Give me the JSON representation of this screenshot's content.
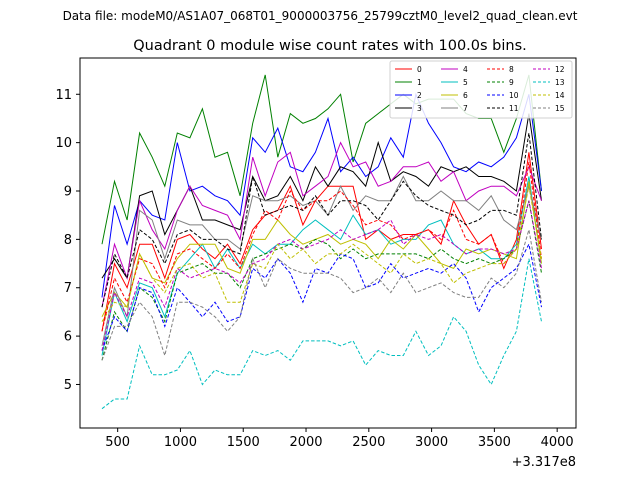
{
  "chart_data": {
    "type": "line",
    "suptitle": "Data file: modeM0/AS1A07_068T01_9000003756_25799cztM0_level2_quad_clean.evt",
    "title": "Quadrant 0 module wise count rates with 100.0s bins.",
    "xlabel": "",
    "ylabel": "",
    "x_offset_label": "+3.317e8",
    "xlim": [
      200,
      4150
    ],
    "ylim": [
      4.1,
      11.75
    ],
    "xticks": [
      500,
      1000,
      1500,
      2000,
      2500,
      3000,
      3500,
      4000
    ],
    "yticks": [
      5,
      6,
      7,
      8,
      9,
      10,
      11
    ],
    "grid": false,
    "legend_position": "top-right",
    "x": [
      375,
      475,
      575,
      675,
      775,
      875,
      975,
      1075,
      1175,
      1275,
      1375,
      1475,
      1575,
      1675,
      1775,
      1875,
      1975,
      2075,
      2175,
      2275,
      2375,
      2475,
      2575,
      2675,
      2775,
      2875,
      2975,
      3075,
      3175,
      3275,
      3375,
      3475,
      3575,
      3675,
      3775,
      3875
    ],
    "series": [
      {
        "name": "0",
        "color": "#ff0000",
        "dash": "solid",
        "values": [
          6.1,
          7.5,
          7.0,
          7.9,
          7.9,
          7.2,
          8.0,
          8.1,
          7.8,
          7.6,
          7.9,
          7.5,
          8.2,
          8.5,
          8.6,
          9.1,
          8.3,
          8.8,
          9.1,
          9.1,
          9.1,
          8.0,
          8.2,
          8.0,
          8.1,
          8.1,
          8.2,
          7.9,
          8.8,
          8.3,
          7.9,
          8.1,
          7.4,
          8.0,
          9.8,
          7.8
        ]
      },
      {
        "name": "1",
        "color": "#008000",
        "dash": "solid",
        "values": [
          7.9,
          9.2,
          8.4,
          10.2,
          9.7,
          9.1,
          10.2,
          10.1,
          10.7,
          9.7,
          9.8,
          8.9,
          10.4,
          11.4,
          9.7,
          10.6,
          10.4,
          10.5,
          10.7,
          11.0,
          9.6,
          10.4,
          10.6,
          10.8,
          11.0,
          10.8,
          10.9,
          10.9,
          10.9,
          10.6,
          10.5,
          10.5,
          9.8,
          10.5,
          11.4,
          9.0
        ]
      },
      {
        "name": "2",
        "color": "#0000ff",
        "dash": "solid",
        "values": [
          6.8,
          8.7,
          7.9,
          8.8,
          8.5,
          8.4,
          10.0,
          9.0,
          9.1,
          8.9,
          8.8,
          8.5,
          10.1,
          9.8,
          10.3,
          9.5,
          9.4,
          9.8,
          10.5,
          9.4,
          9.7,
          9.3,
          9.5,
          10.1,
          9.7,
          11.0,
          10.4,
          10.0,
          9.5,
          9.4,
          9.6,
          9.5,
          9.7,
          10.1,
          11.0,
          9.0
        ]
      },
      {
        "name": "3",
        "color": "#000000",
        "dash": "solid",
        "values": [
          7.2,
          7.6,
          7.2,
          8.9,
          9.0,
          8.1,
          8.6,
          9.1,
          8.4,
          8.4,
          8.3,
          8.2,
          9.3,
          8.8,
          8.9,
          9.3,
          8.8,
          9.5,
          9.1,
          9.5,
          9.4,
          9.1,
          10.0,
          9.2,
          9.4,
          9.3,
          9.1,
          9.5,
          9.4,
          9.5,
          9.3,
          9.3,
          9.2,
          9.0,
          10.6,
          8.8
        ]
      },
      {
        "name": "4",
        "color": "#c000c0",
        "dash": "solid",
        "values": [
          6.6,
          7.9,
          7.2,
          8.8,
          8.2,
          7.8,
          8.6,
          9.1,
          8.7,
          8.6,
          8.5,
          8.0,
          9.7,
          8.9,
          9.6,
          9.8,
          8.9,
          9.1,
          9.3,
          10.0,
          9.5,
          9.6,
          9.1,
          9.2,
          9.5,
          9.5,
          9.6,
          9.2,
          9.4,
          8.8,
          9.0,
          9.1,
          9.1,
          8.9,
          9.5,
          8.8
        ]
      },
      {
        "name": "5",
        "color": "#00bfbf",
        "dash": "solid",
        "values": [
          5.6,
          6.9,
          6.3,
          7.1,
          7.0,
          6.4,
          7.3,
          7.6,
          7.9,
          7.4,
          7.8,
          7.4,
          7.9,
          7.7,
          7.9,
          7.9,
          8.2,
          8.4,
          8.2,
          8.0,
          8.5,
          8.1,
          8.2,
          7.9,
          8.0,
          8.0,
          8.3,
          8.4,
          7.9,
          7.7,
          7.8,
          7.6,
          7.6,
          7.9,
          9.3,
          7.5
        ]
      },
      {
        "name": "6",
        "color": "#bfbf00",
        "dash": "solid",
        "values": [
          6.4,
          6.9,
          6.6,
          7.7,
          7.2,
          7.1,
          7.6,
          7.9,
          7.9,
          7.9,
          7.4,
          7.3,
          8.0,
          8.0,
          8.4,
          8.1,
          7.9,
          8.0,
          8.1,
          7.9,
          8.0,
          7.9,
          7.6,
          8.0,
          7.8,
          8.1,
          7.8,
          7.5,
          7.4,
          7.8,
          7.7,
          7.8,
          7.7,
          7.6,
          9.2,
          7.5
        ]
      },
      {
        "name": "7",
        "color": "#808080",
        "dash": "solid",
        "values": [
          5.8,
          7.0,
          6.4,
          8.6,
          8.4,
          7.6,
          8.4,
          8.3,
          8.3,
          8.0,
          8.0,
          7.8,
          8.9,
          8.8,
          8.8,
          8.9,
          8.7,
          8.8,
          8.5,
          9.1,
          8.6,
          8.9,
          8.8,
          8.8,
          9.3,
          8.8,
          8.8,
          9.0,
          8.8,
          8.8,
          8.6,
          8.9,
          8.4,
          8.2,
          9.1,
          8.0
        ]
      },
      {
        "name": "8",
        "color": "#ff0000",
        "dash": "dashed",
        "values": [
          6.1,
          7.2,
          6.7,
          7.6,
          7.5,
          7.0,
          7.7,
          7.8,
          7.6,
          7.4,
          7.7,
          7.4,
          8.1,
          8.6,
          8.4,
          9.0,
          8.6,
          8.8,
          8.8,
          9.0,
          8.7,
          8.3,
          8.4,
          8.3,
          8.0,
          8.1,
          8.2,
          8.0,
          8.6,
          8.0,
          7.9,
          8.1,
          7.5,
          7.8,
          9.6,
          7.6
        ]
      },
      {
        "name": "9",
        "color": "#008000",
        "dash": "dashed",
        "values": [
          5.5,
          6.5,
          6.1,
          7.0,
          6.8,
          6.3,
          7.3,
          7.4,
          7.5,
          7.3,
          7.3,
          7.0,
          7.6,
          7.7,
          7.8,
          7.9,
          7.8,
          8.0,
          7.9,
          7.6,
          7.8,
          7.6,
          7.7,
          7.7,
          7.7,
          7.7,
          7.6,
          7.8,
          7.6,
          7.5,
          7.6,
          7.5,
          7.6,
          7.8,
          8.8,
          7.3
        ]
      },
      {
        "name": "10",
        "color": "#0000ff",
        "dash": "dashed",
        "values": [
          5.7,
          6.4,
          6.1,
          7.0,
          6.9,
          6.2,
          7.0,
          6.7,
          6.4,
          6.7,
          6.3,
          6.4,
          7.4,
          7.2,
          7.6,
          7.3,
          6.7,
          7.4,
          7.3,
          7.7,
          7.6,
          7.0,
          7.1,
          7.5,
          7.2,
          7.3,
          7.4,
          7.3,
          7.5,
          7.2,
          6.5,
          7.0,
          7.2,
          7.4,
          7.9,
          6.6
        ]
      },
      {
        "name": "11",
        "color": "#000000",
        "dash": "dashed",
        "values": [
          6.6,
          7.7,
          7.2,
          8.2,
          8.0,
          7.5,
          8.1,
          8.2,
          8.0,
          8.0,
          7.8,
          7.7,
          9.3,
          8.5,
          8.6,
          8.7,
          8.6,
          8.9,
          8.5,
          8.8,
          8.8,
          8.7,
          8.4,
          8.8,
          9.2,
          8.9,
          8.7,
          8.6,
          8.5,
          8.3,
          8.4,
          8.6,
          8.6,
          8.5,
          10.2,
          8.0
        ]
      },
      {
        "name": "12",
        "color": "#c000c0",
        "dash": "dashed",
        "values": [
          5.7,
          6.9,
          6.4,
          7.2,
          7.1,
          6.6,
          7.4,
          7.2,
          7.3,
          7.4,
          7.3,
          7.1,
          7.5,
          7.6,
          7.9,
          8.0,
          7.8,
          7.9,
          8.0,
          8.2,
          8.0,
          8.1,
          8.2,
          8.4,
          7.9,
          8.1,
          8.0,
          8.1,
          7.9,
          7.7,
          7.8,
          7.8,
          7.7,
          7.8,
          8.8,
          7.4
        ]
      },
      {
        "name": "13",
        "color": "#00bfbf",
        "dash": "dashed",
        "values": [
          4.5,
          4.7,
          4.7,
          5.8,
          5.2,
          5.2,
          5.3,
          5.7,
          5.0,
          5.3,
          5.2,
          5.2,
          5.7,
          5.6,
          5.7,
          5.5,
          5.9,
          5.9,
          5.9,
          5.8,
          5.9,
          5.4,
          5.7,
          5.6,
          5.6,
          6.1,
          5.6,
          5.8,
          6.4,
          6.1,
          5.4,
          5.0,
          5.6,
          6.1,
          7.6,
          6.3
        ]
      },
      {
        "name": "14",
        "color": "#bfbf00",
        "dash": "dashed",
        "values": [
          6.3,
          6.7,
          6.6,
          7.7,
          7.2,
          6.9,
          7.4,
          7.5,
          7.2,
          7.3,
          6.7,
          6.7,
          7.5,
          7.4,
          7.9,
          7.6,
          7.8,
          7.5,
          7.7,
          7.7,
          7.9,
          7.7,
          7.5,
          7.3,
          7.7,
          7.5,
          7.6,
          7.5,
          7.1,
          7.3,
          7.4,
          7.5,
          7.5,
          7.8,
          9.1,
          7.6
        ]
      },
      {
        "name": "15",
        "color": "#808080",
        "dash": "dashed",
        "values": [
          5.5,
          6.2,
          6.2,
          6.7,
          6.4,
          5.6,
          6.7,
          6.7,
          6.6,
          6.4,
          6.1,
          6.4,
          7.6,
          7.0,
          7.6,
          7.4,
          7.3,
          7.3,
          7.3,
          7.2,
          6.9,
          7.0,
          7.2,
          6.9,
          7.3,
          6.9,
          7.0,
          7.1,
          6.9,
          6.8,
          6.8,
          7.2,
          7.0,
          7.3,
          8.2,
          6.7
        ]
      }
    ]
  }
}
